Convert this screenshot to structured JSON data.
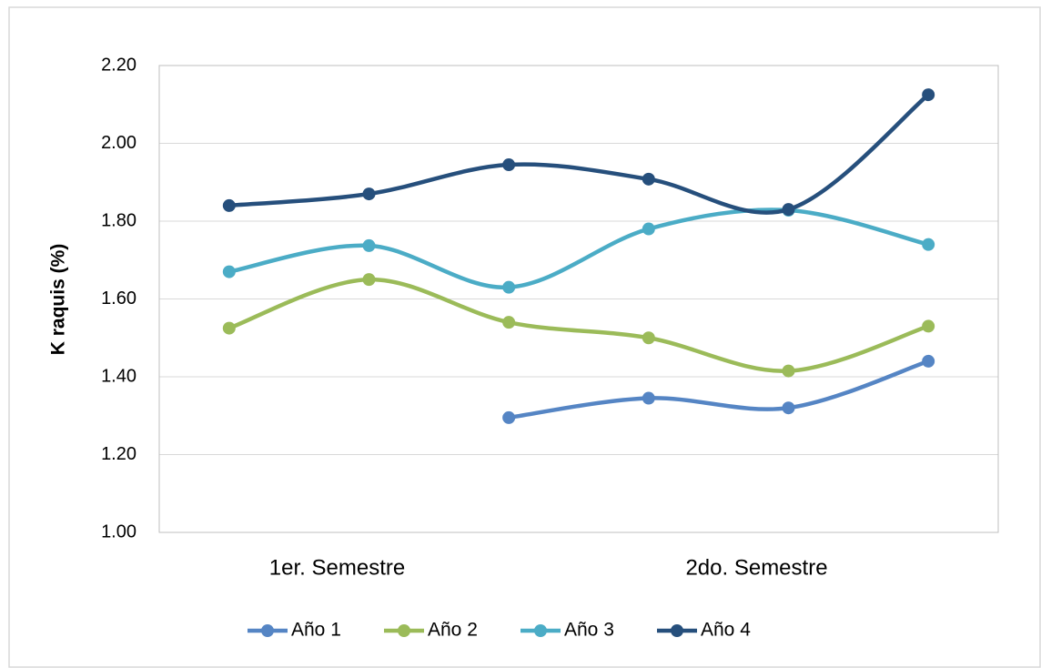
{
  "chart_data": {
    "type": "line",
    "y_label": "K raquis (%)",
    "categories": [
      null,
      "1er. Semestre",
      null,
      null,
      "2do. Semestre",
      null
    ],
    "series": [
      {
        "name": "Año 1",
        "color": "#5585c4",
        "values": [
          null,
          null,
          1.295,
          1.345,
          1.32,
          1.44
        ]
      },
      {
        "name": "Año 2",
        "color": "#9bbb59",
        "values": [
          1.525,
          1.65,
          1.54,
          1.5,
          1.415,
          1.53
        ]
      },
      {
        "name": "Año 3",
        "color": "#4bacc6",
        "values": [
          1.67,
          1.737,
          1.63,
          1.78,
          1.828,
          1.74
        ]
      },
      {
        "name": "Año 4",
        "color": "#264f7c",
        "values": [
          1.84,
          1.87,
          1.945,
          1.908,
          1.83,
          2.125
        ]
      }
    ],
    "ylim": [
      1.0,
      2.2
    ],
    "yticks": [
      {
        "value": 1.0,
        "label": "1.00"
      },
      {
        "value": 1.2,
        "label": "1.20"
      },
      {
        "value": 1.4,
        "label": "1.40"
      },
      {
        "value": 1.6,
        "label": "1.60"
      },
      {
        "value": 1.8,
        "label": "1.80"
      },
      {
        "value": 2.0,
        "label": "2.00"
      },
      {
        "value": 2.2,
        "label": "2.20"
      }
    ],
    "grid": true,
    "smooth": true,
    "legend": "bottom"
  }
}
